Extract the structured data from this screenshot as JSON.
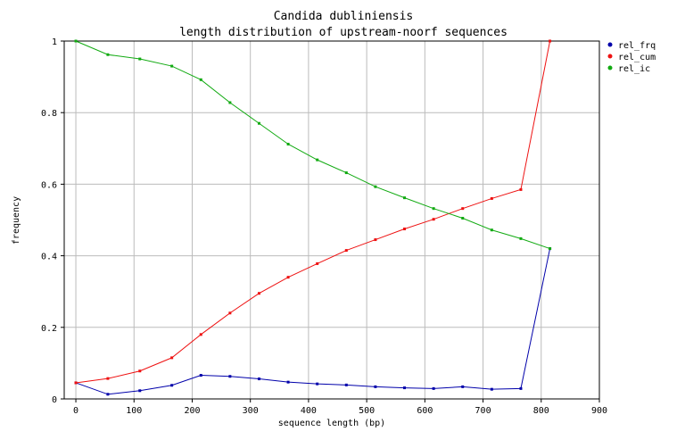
{
  "chart_data": {
    "type": "line",
    "title": "Candida dubliniensis",
    "subtitle": "length distribution of upstream-noorf sequences",
    "xlabel": "sequence length (bp)",
    "ylabel": "frequency",
    "xlim": [
      -20,
      900
    ],
    "ylim": [
      0,
      1
    ],
    "xticks": [
      0,
      100,
      200,
      300,
      400,
      500,
      600,
      700,
      800,
      900
    ],
    "yticks": [
      0,
      0.2,
      0.4,
      0.6,
      0.8,
      1
    ],
    "ytick_labels": [
      "0",
      "0.2",
      "0.4",
      "0.6",
      "0.8",
      "1"
    ],
    "grid": true,
    "legend_position": "right",
    "x": [
      0,
      55,
      110,
      165,
      215,
      265,
      315,
      365,
      415,
      465,
      515,
      565,
      615,
      665,
      715,
      765,
      815
    ],
    "series": [
      {
        "name": "rel_frq",
        "color": "#0000aa",
        "values": [
          0.045,
          0.013,
          0.023,
          0.038,
          0.066,
          0.063,
          0.056,
          0.047,
          0.042,
          0.039,
          0.034,
          0.031,
          0.029,
          0.034,
          0.027,
          0.029,
          0.42
        ]
      },
      {
        "name": "rel_cum",
        "color": "#ee1111",
        "values": [
          0.045,
          0.057,
          0.078,
          0.115,
          0.18,
          0.24,
          0.295,
          0.34,
          0.378,
          0.415,
          0.445,
          0.475,
          0.502,
          0.532,
          0.56,
          0.585,
          1.0
        ]
      },
      {
        "name": "rel_ic",
        "color": "#11aa11",
        "values": [
          1.0,
          0.962,
          0.95,
          0.93,
          0.892,
          0.828,
          0.77,
          0.712,
          0.668,
          0.632,
          0.593,
          0.562,
          0.532,
          0.505,
          0.472,
          0.448,
          0.42
        ]
      }
    ]
  }
}
